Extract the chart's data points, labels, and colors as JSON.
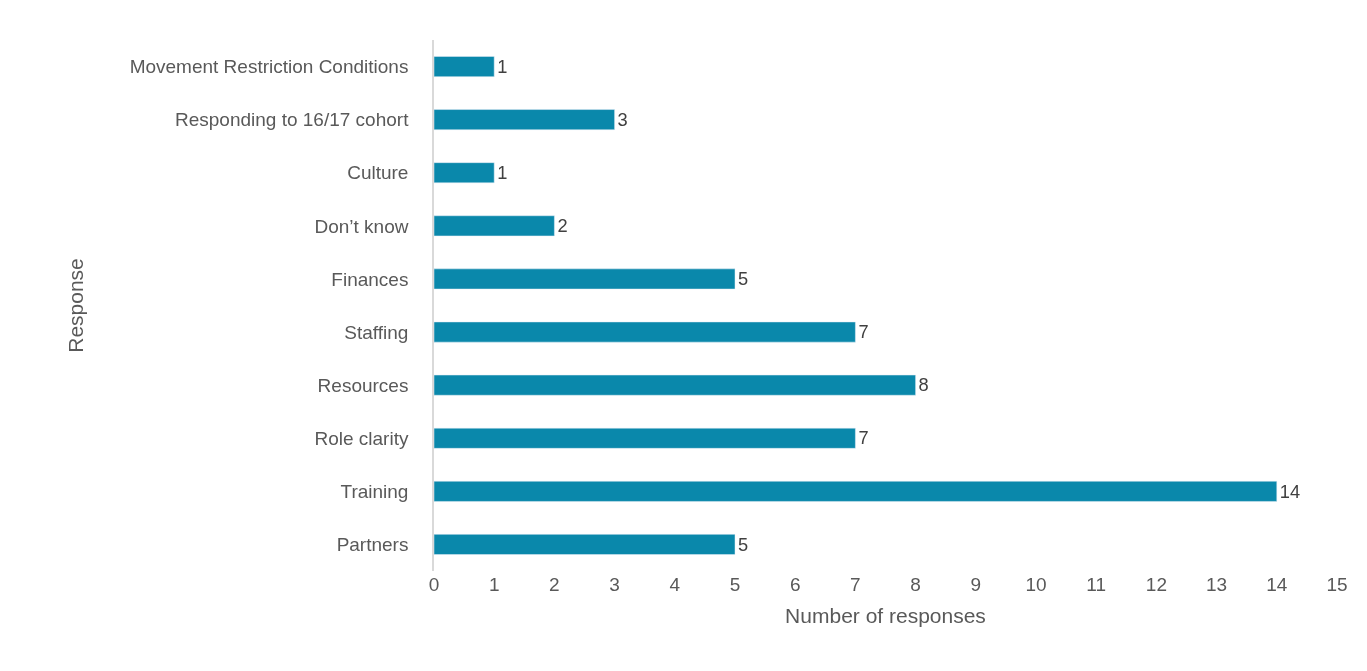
{
  "chart_data": {
    "type": "bar",
    "orientation": "horizontal",
    "categories": [
      "Movement Restriction Conditions",
      "Responding to 16/17 cohort",
      "Culture",
      "Don’t know",
      "Finances",
      "Staffing",
      "Resources",
      "Role clarity",
      "Training",
      "Partners"
    ],
    "values": [
      1,
      3,
      1,
      2,
      5,
      7,
      8,
      7,
      14,
      5
    ],
    "color": "#0a88ab",
    "xlim": [
      0,
      15
    ],
    "xticks": [
      0,
      1,
      2,
      3,
      4,
      5,
      6,
      7,
      8,
      9,
      10,
      11,
      12,
      13,
      14,
      15
    ],
    "xlabel": "Number of responses",
    "ylabel": "Response",
    "data_labels": true,
    "grid": false,
    "legend": false
  }
}
